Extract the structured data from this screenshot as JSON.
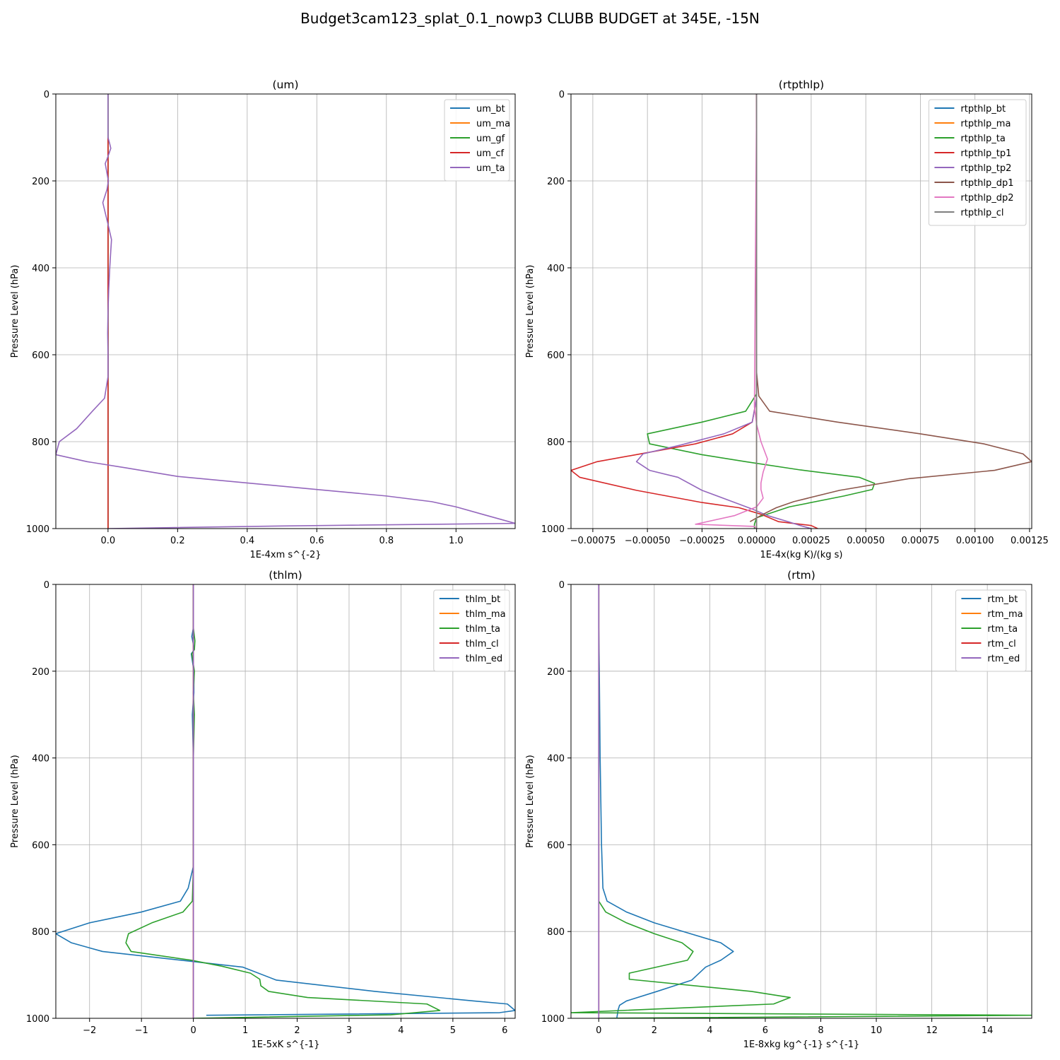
{
  "figure": {
    "suptitle": "Budget3cam123_splat_0.1_nowp3 CLUBB BUDGET at 345E, -15N"
  },
  "chart_data": [
    {
      "type": "line",
      "title": "(um)",
      "xlabel": "1E-4xm s^{-2}",
      "ylabel": "Pressure Level (hPa)",
      "xlim": [
        -0.15,
        1.17
      ],
      "ylim": [
        1000,
        0
      ],
      "xticks": [
        0.0,
        0.2,
        0.4,
        0.6,
        0.8,
        1.0
      ],
      "xtick_labels": [
        "0.0",
        "0.2",
        "0.4",
        "0.6",
        "0.8",
        "1.0"
      ],
      "yticks": [
        0,
        200,
        400,
        600,
        800,
        1000
      ],
      "grid": true,
      "legend_position": "top-right",
      "series": [
        {
          "name": "um_bt",
          "color": "#1f77b4",
          "x": [
            0,
            0,
            0
          ],
          "y": [
            0,
            500,
            1000
          ]
        },
        {
          "name": "um_ma",
          "color": "#ff7f0e",
          "x": [
            0,
            0,
            0
          ],
          "y": [
            0,
            500,
            1000
          ]
        },
        {
          "name": "um_gf",
          "color": "#2ca02c",
          "x": [
            0,
            0,
            0
          ],
          "y": [
            0,
            500,
            1000
          ]
        },
        {
          "name": "um_cf",
          "color": "#d62728",
          "x": [
            0,
            0,
            0
          ],
          "y": [
            100,
            500,
            1000
          ]
        },
        {
          "name": "um_ta",
          "color": "#9467bd",
          "x": [
            0.0,
            0.0,
            0.005,
            0.008,
            -0.003,
            -0.008,
            0.001,
            -0.003,
            -0.015,
            0.0,
            0.01,
            0.008,
            0.005,
            0.002,
            0.0,
            -0.001,
            0.0,
            0.0,
            -0.01,
            -0.045,
            -0.09,
            -0.14,
            -0.15,
            -0.06,
            0.05,
            0.2,
            0.4,
            0.6,
            0.8,
            0.93,
            1.0,
            1.08,
            1.17,
            0.5,
            0.0
          ],
          "y": [
            0,
            100,
            115,
            125,
            150,
            160,
            200,
            220,
            250,
            300,
            335,
            360,
            400,
            450,
            500,
            550,
            600,
            650,
            700,
            730,
            770,
            800,
            830,
            846,
            860,
            880,
            895,
            910,
            925,
            938,
            950,
            968,
            988,
            994,
            1000
          ]
        }
      ]
    },
    {
      "type": "line",
      "title": "(rtpthlp)",
      "xlabel": "1E-4x(kg K)/(kg s)",
      "ylabel": "Pressure Level (hPa)",
      "xlim": [
        -0.00085,
        0.00126
      ],
      "ylim": [
        1000,
        0
      ],
      "xticks": [
        -0.00075,
        -0.0005,
        -0.00025,
        0.0,
        0.00025,
        0.0005,
        0.00075,
        0.001,
        0.00125
      ],
      "xtick_labels": [
        "−0.00075",
        "−0.00050",
        "−0.00025",
        "0.00000",
        "0.00025",
        "0.00050",
        "0.00075",
        "0.00100",
        "0.00125"
      ],
      "yticks": [
        0,
        200,
        400,
        600,
        800,
        1000
      ],
      "grid": true,
      "legend_position": "top-right",
      "series": [
        {
          "name": "rtpthlp_bt",
          "color": "#1f77b4",
          "x": [
            0,
            0,
            0
          ],
          "y": [
            0,
            500,
            1000
          ]
        },
        {
          "name": "rtpthlp_ma",
          "color": "#ff7f0e",
          "x": [
            0,
            0,
            0
          ],
          "y": [
            0,
            500,
            1000
          ]
        },
        {
          "name": "rtpthlp_ta",
          "color": "#2ca02c",
          "x": [
            0.0,
            0.0,
            0.0,
            -5e-05,
            -0.00025,
            -0.0005,
            -0.00049,
            -0.00025,
            -5e-05,
            0.0002,
            0.00047,
            0.00054,
            0.00053,
            0.0004,
            0.00015,
            0.0,
            -1e-05,
            -1e-05
          ],
          "y": [
            0,
            600,
            690,
            730,
            755,
            782,
            805,
            830,
            846,
            865,
            882,
            896,
            910,
            925,
            950,
            975,
            990,
            1000
          ]
        },
        {
          "name": "rtpthlp_tp1",
          "color": "#d62728",
          "x": [
            0.0,
            0.0,
            -2e-05,
            -0.00011,
            -0.00028,
            -0.00053,
            -0.00073,
            -0.00085,
            -0.00081,
            -0.00055,
            -0.00025,
            -8e-05,
            2e-05,
            0.0001,
            0.00025,
            0.00028
          ],
          "y": [
            0,
            700,
            755,
            782,
            805,
            828,
            846,
            866,
            882,
            912,
            940,
            952,
            967,
            984,
            993,
            1000
          ]
        },
        {
          "name": "rtpthlp_tp2",
          "color": "#9467bd",
          "x": [
            0.0,
            0.0,
            -2e-05,
            -0.00015,
            -0.00035,
            -0.00052,
            -0.00055,
            -0.00049,
            -0.00036,
            -0.00025,
            -0.0001,
            -2e-05,
            5e-05,
            0.00015,
            0.0002,
            0.00025
          ],
          "y": [
            0,
            700,
            755,
            782,
            808,
            828,
            846,
            866,
            882,
            912,
            940,
            955,
            970,
            985,
            993,
            1000
          ]
        },
        {
          "name": "rtpthlp_dp1",
          "color": "#8c564b",
          "x": [
            0.0,
            0.0,
            1e-05,
            6e-05,
            0.00037,
            0.00075,
            0.00104,
            0.00122,
            0.00126,
            0.00109,
            0.0007,
            0.00038,
            0.00017,
            9e-05,
            3e-05,
            -3e-05
          ],
          "y": [
            0,
            640,
            695,
            730,
            755,
            782,
            805,
            828,
            846,
            866,
            885,
            912,
            938,
            952,
            967,
            984
          ]
        },
        {
          "name": "rtpthlp_dp2",
          "color": "#e377c2",
          "x": [
            0.0,
            -1e-05,
            0.0,
            2e-05,
            5e-05,
            3e-05,
            2e-05,
            2e-05,
            3e-05,
            0.0,
            -0.0001,
            -0.00028,
            -1e-05,
            0.0
          ],
          "y": [
            0,
            720,
            760,
            800,
            840,
            870,
            895,
            910,
            930,
            950,
            970,
            990,
            995,
            1000
          ]
        },
        {
          "name": "rtpthlp_cl",
          "color": "#7f7f7f",
          "x": [
            0,
            0,
            0
          ],
          "y": [
            0,
            500,
            1000
          ]
        }
      ]
    },
    {
      "type": "line",
      "title": "(thlm)",
      "xlabel": "1E-5xK s^{-1}",
      "ylabel": "Pressure Level (hPa)",
      "xlim": [
        -2.65,
        6.2
      ],
      "ylim": [
        1000,
        0
      ],
      "xticks": [
        -2,
        -1,
        0,
        1,
        2,
        3,
        4,
        5,
        6
      ],
      "xtick_labels": [
        "−2",
        "−1",
        "0",
        "1",
        "2",
        "3",
        "4",
        "5",
        "6"
      ],
      "yticks": [
        0,
        200,
        400,
        600,
        800,
        1000
      ],
      "grid": true,
      "legend_position": "top-right",
      "series": [
        {
          "name": "thlm_bt",
          "color": "#1f77b4",
          "x": [
            0.0,
            0.0,
            -0.03,
            0.02,
            -0.04,
            0.01,
            0.01,
            -0.02,
            0.0,
            0.0,
            0.0,
            -0.1,
            -0.25,
            -1.0,
            -2.0,
            -2.65,
            -2.35,
            -1.75,
            -0.25,
            0.95,
            1.6,
            3.5,
            5.4,
            6.05,
            6.2,
            5.9,
            0.25
          ],
          "y": [
            0,
            100,
            120,
            150,
            160,
            200,
            250,
            300,
            400,
            500,
            650,
            700,
            730,
            755,
            780,
            805,
            826,
            846,
            866,
            882,
            912,
            938,
            960,
            967,
            982,
            987,
            993
          ]
        },
        {
          "name": "thlm_ma",
          "color": "#ff7f0e",
          "x": [
            0,
            0,
            0
          ],
          "y": [
            0,
            500,
            1000
          ]
        },
        {
          "name": "thlm_ta",
          "color": "#2ca02c",
          "x": [
            0.0,
            0.0,
            0.03,
            0.02,
            -0.03,
            0.02,
            0.0,
            0.02,
            0.0,
            0.0,
            0.0,
            -0.02,
            -0.2,
            -0.8,
            -1.25,
            -1.3,
            -1.2,
            -0.05,
            0.55,
            1.1,
            1.28,
            1.3,
            1.45,
            2.2,
            4.5,
            4.75,
            3.8,
            0.0
          ],
          "y": [
            0,
            100,
            130,
            150,
            160,
            200,
            250,
            300,
            400,
            500,
            650,
            730,
            755,
            780,
            805,
            826,
            846,
            866,
            880,
            896,
            910,
            925,
            938,
            952,
            967,
            982,
            992,
            1000
          ]
        },
        {
          "name": "thlm_cl",
          "color": "#d62728",
          "x": [
            0,
            0,
            0
          ],
          "y": [
            0,
            500,
            1000
          ]
        },
        {
          "name": "thlm_ed",
          "color": "#9467bd",
          "x": [
            0,
            0,
            0
          ],
          "y": [
            0,
            500,
            1000
          ]
        }
      ]
    },
    {
      "type": "line",
      "title": "(rtm)",
      "xlabel": "1E-8xkg kg^{-1} s^{-1}",
      "ylabel": "Pressure Level (hPa)",
      "xlim": [
        -1.0,
        15.6
      ],
      "ylim": [
        1000,
        0
      ],
      "xticks": [
        0,
        2,
        4,
        6,
        8,
        10,
        12,
        14
      ],
      "xtick_labels": [
        "0",
        "2",
        "4",
        "6",
        "8",
        "10",
        "12",
        "14"
      ],
      "yticks": [
        0,
        200,
        400,
        600,
        800,
        1000
      ],
      "grid": true,
      "legend_position": "top-right",
      "series": [
        {
          "name": "rtm_bt",
          "color": "#1f77b4",
          "x": [
            0.0,
            0.0,
            0.02,
            0.05,
            0.1,
            0.15,
            0.3,
            1.0,
            2.0,
            3.3,
            4.4,
            4.85,
            4.4,
            3.85,
            3.35,
            2.1,
            1.0,
            0.75,
            0.7,
            0.65
          ],
          "y": [
            0,
            100,
            200,
            400,
            600,
            700,
            730,
            755,
            780,
            805,
            826,
            846,
            866,
            882,
            912,
            938,
            960,
            970,
            980,
            1000
          ]
        },
        {
          "name": "rtm_ma",
          "color": "#ff7f0e",
          "x": [
            0,
            0,
            0
          ],
          "y": [
            0,
            500,
            1000
          ]
        },
        {
          "name": "rtm_ta",
          "color": "#2ca02c",
          "x": [
            0.0,
            0.0,
            0.0,
            0.0,
            0.0,
            0.0,
            0.0,
            0.25,
            1.0,
            2.0,
            3.0,
            3.4,
            3.2,
            1.1,
            1.1,
            5.5,
            6.9,
            6.3,
            -1.0,
            15.6,
            0.0
          ],
          "y": [
            0,
            100,
            200,
            400,
            600,
            700,
            730,
            755,
            780,
            805,
            826,
            846,
            866,
            896,
            910,
            938,
            952,
            967,
            987,
            993,
            1000
          ]
        },
        {
          "name": "rtm_cl",
          "color": "#d62728",
          "x": [
            0,
            0,
            0
          ],
          "y": [
            0,
            500,
            1000
          ]
        },
        {
          "name": "rtm_ed",
          "color": "#9467bd",
          "x": [
            0,
            0,
            0
          ],
          "y": [
            0,
            500,
            1000
          ]
        }
      ]
    }
  ]
}
